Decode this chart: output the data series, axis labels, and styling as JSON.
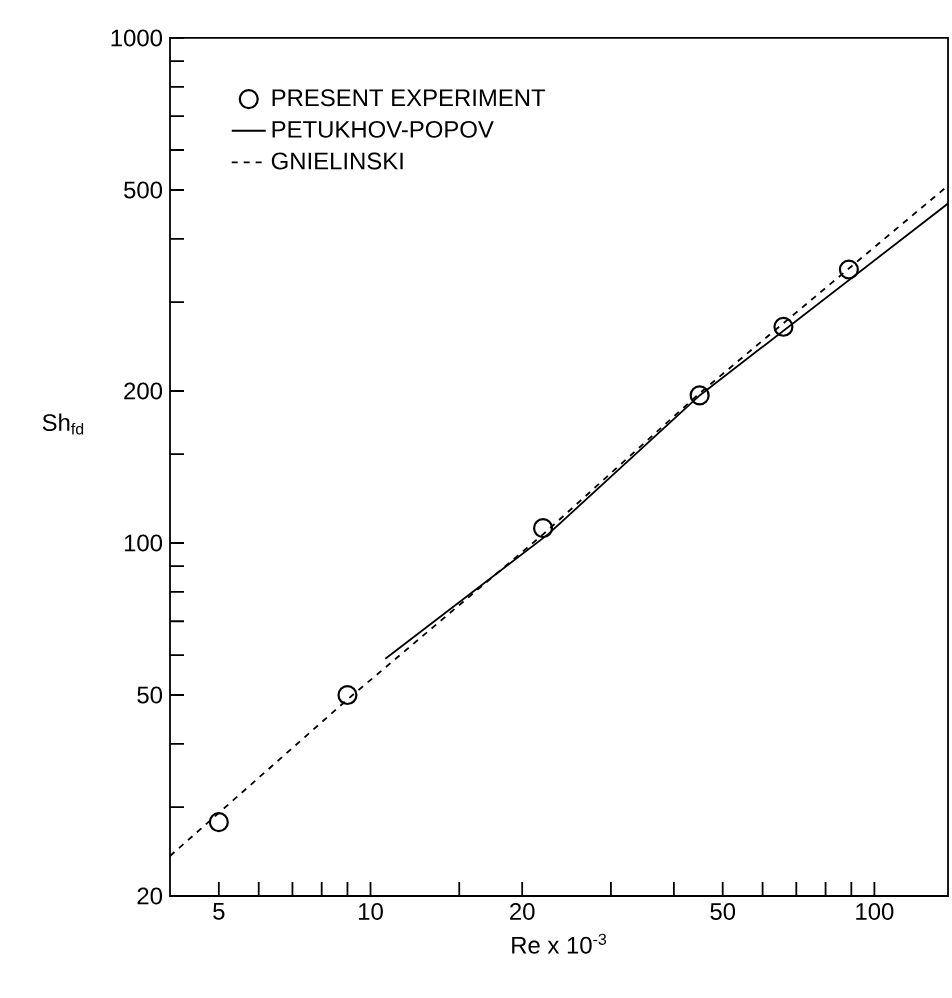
{
  "chart_data": {
    "type": "line",
    "xlabel": "Re x 10$^{-3}$",
    "ylabel": "Sh$_{fd}$",
    "log": "xy",
    "grid": false,
    "legend": "top left",
    "xlim": [
      4,
      140
    ],
    "ylim": [
      20,
      1000
    ],
    "xticks": [
      5,
      {
        "value": 6,
        "label": null
      },
      {
        "value": 7,
        "label": null
      },
      {
        "value": 8,
        "label": null
      },
      {
        "value": 9,
        "label": null
      },
      10,
      {
        "value": 15,
        "label": null
      },
      20,
      {
        "value": 30,
        "label": null
      },
      {
        "value": 40,
        "label": null
      },
      50,
      {
        "value": 60,
        "label": null
      },
      {
        "value": 70,
        "label": null
      },
      {
        "value": 80,
        "label": null
      },
      {
        "value": 90,
        "label": null
      },
      100
    ],
    "yticks": [
      20,
      {
        "value": 30,
        "label": null
      },
      {
        "value": 40,
        "label": null
      },
      50,
      {
        "value": 60,
        "label": null
      },
      {
        "value": 70,
        "label": null
      },
      {
        "value": 80,
        "label": null
      },
      {
        "value": 90,
        "label": null
      },
      100,
      {
        "value": 150,
        "label": null
      },
      200,
      {
        "value": 300,
        "label": null
      },
      {
        "value": 400,
        "label": null
      },
      500,
      {
        "value": 600,
        "label": null
      },
      {
        "value": 700,
        "label": null
      },
      {
        "value": 800,
        "label": null
      },
      {
        "value": 900,
        "label": null
      },
      1000
    ],
    "series": [
      {
        "name": "PRESENT EXPERIMENT",
        "type": "scatter",
        "marker": "circle",
        "color": "#000000",
        "x": [
          5,
          9,
          22,
          45,
          66,
          89
        ],
        "values": [
          28,
          50,
          107,
          196,
          268,
          348
        ]
      },
      {
        "name": "PETUKHOV-POPOV",
        "type": "line",
        "line_style": "solid",
        "color": "#000000",
        "x": [
          10.7,
          22.5,
          45,
          140
        ],
        "values": [
          59,
          104,
          196,
          470
        ]
      },
      {
        "name": "GNIELINSKI",
        "type": "line",
        "line_style": "dashed",
        "color": "#000000",
        "x": [
          4,
          9,
          22,
          45,
          140
        ],
        "values": [
          24,
          49,
          104,
          198,
          510
        ]
      }
    ]
  }
}
